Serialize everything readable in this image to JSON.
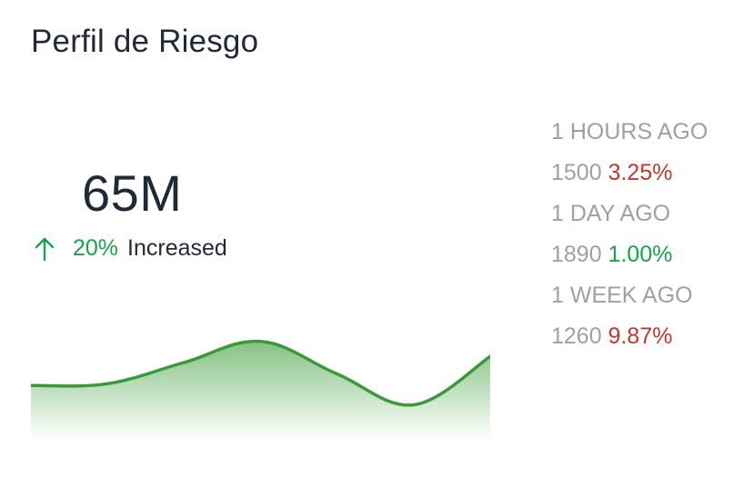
{
  "card": {
    "title": "Perfil de Riesgo",
    "value": "65M",
    "change_percent": "20%",
    "change_label": "Increased",
    "change_icon": "arrow-up-icon",
    "accent_color": "#16a34a"
  },
  "history": [
    {
      "period": "1 HOURS AGO",
      "count": "1500",
      "percent": "3.25%",
      "trend": "down",
      "percent_color": "#c0392b"
    },
    {
      "period": "1 DAY AGO",
      "count": "1890",
      "percent": "1.00%",
      "trend": "up",
      "percent_color": "#16a34a"
    },
    {
      "period": "1 WEEK AGO",
      "count": "1260",
      "percent": "9.87%",
      "trend": "down",
      "percent_color": "#c0392b"
    }
  ],
  "chart_data": {
    "type": "area",
    "x": [
      0,
      1,
      2,
      3,
      4,
      5,
      6
    ],
    "values": [
      42,
      44,
      68,
      92,
      55,
      20,
      75
    ],
    "ylim": [
      0,
      100
    ],
    "line_color": "#3a9a3a",
    "fill_color": "#59ad59",
    "grid": false
  }
}
